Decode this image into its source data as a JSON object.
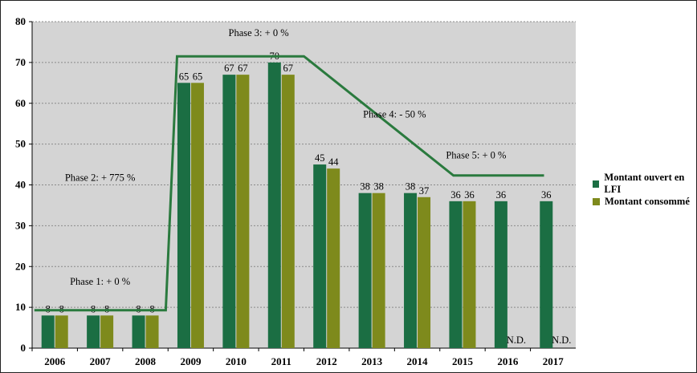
{
  "chart_data": {
    "type": "bar",
    "categories": [
      "2006",
      "2007",
      "2008",
      "2009",
      "2010",
      "2011",
      "2012",
      "2013",
      "2014",
      "2015",
      "2016",
      "2017"
    ],
    "series": [
      {
        "name": "Montant ouvert en LFI",
        "color": "#1b6e43",
        "values": [
          8,
          8,
          8,
          65,
          67,
          70,
          45,
          38,
          38,
          36,
          36,
          36
        ]
      },
      {
        "name": "Montant consommé",
        "color": "#7e8a1c",
        "values": [
          8,
          8,
          8,
          65,
          67,
          67,
          44,
          38,
          37,
          36,
          null,
          null
        ]
      }
    ],
    "na_labels": [
      "",
      "",
      "",
      "",
      "",
      "",
      "",
      "",
      "",
      "",
      "N.D.",
      "N.D."
    ],
    "ylim": [
      0,
      80
    ],
    "yticks": [
      0,
      10,
      20,
      30,
      40,
      50,
      60,
      70,
      80
    ],
    "grid": true,
    "legend_position": "right",
    "plot_background": "#d4d4d4",
    "trend_color": "#2a7a3e",
    "trend_line": [
      {
        "x": 2005.55,
        "y": 9.3
      },
      {
        "x": 2008.45,
        "y": 9.3
      },
      {
        "x": 2008.7,
        "y": 71.5
      },
      {
        "x": 2011.5,
        "y": 71.5
      },
      {
        "x": 2014.8,
        "y": 42.3
      },
      {
        "x": 2016.8,
        "y": 42.3
      }
    ],
    "annotations": [
      {
        "text": "Phase 1: + 0 %",
        "x": 2007.0,
        "y": 15.5
      },
      {
        "text": "Phase 2: + 775 %",
        "x": 2007.0,
        "y": 41.0
      },
      {
        "text": "Phase 3: + 0 %",
        "x": 2010.5,
        "y": 76.5
      },
      {
        "text": "Phase 4: - 50 %",
        "x": 2013.5,
        "y": 56.5
      },
      {
        "text": "Phase 5: + 0 %",
        "x": 2015.3,
        "y": 46.5
      }
    ]
  }
}
